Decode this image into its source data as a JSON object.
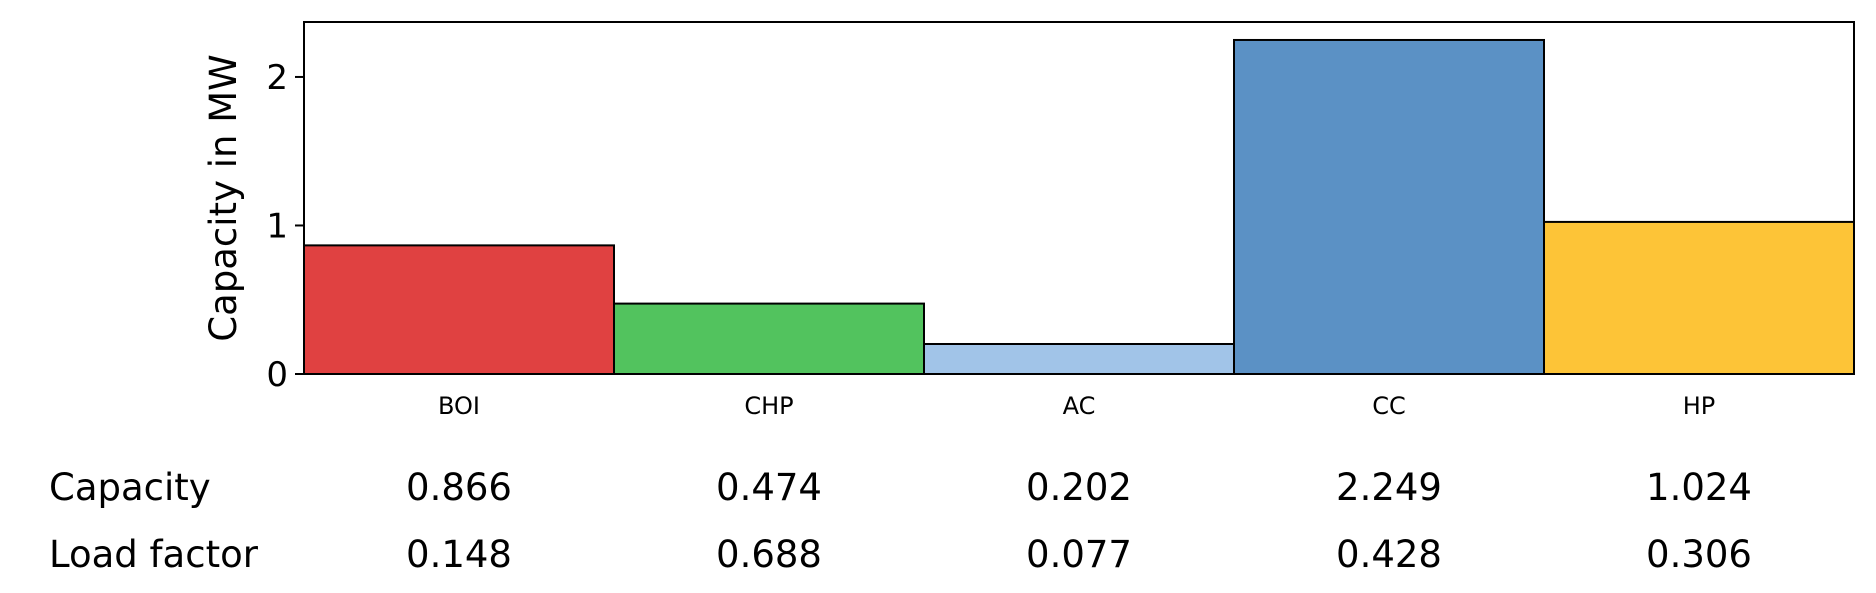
{
  "chart_data": {
    "type": "bar",
    "categories": [
      "BOI",
      "CHP",
      "AC",
      "CC",
      "HP"
    ],
    "values": [
      0.866,
      0.474,
      0.202,
      2.249,
      1.024
    ],
    "colors": [
      "#e04141",
      "#52c35e",
      "#a1c4e8",
      "#5b91c5",
      "#fdc437"
    ],
    "xlabel": "",
    "ylabel": "Capacity in MW",
    "ylim": [
      0,
      2.37
    ],
    "yticks": [
      0,
      1,
      2
    ],
    "grid": false
  },
  "table": {
    "rows": [
      {
        "label": "Capacity",
        "values": [
          "0.866",
          "0.474",
          "0.202",
          "2.249",
          "1.024"
        ]
      },
      {
        "label": "Load factor",
        "values": [
          "0.148",
          "0.688",
          "0.077",
          "0.428",
          "0.306"
        ]
      }
    ]
  }
}
